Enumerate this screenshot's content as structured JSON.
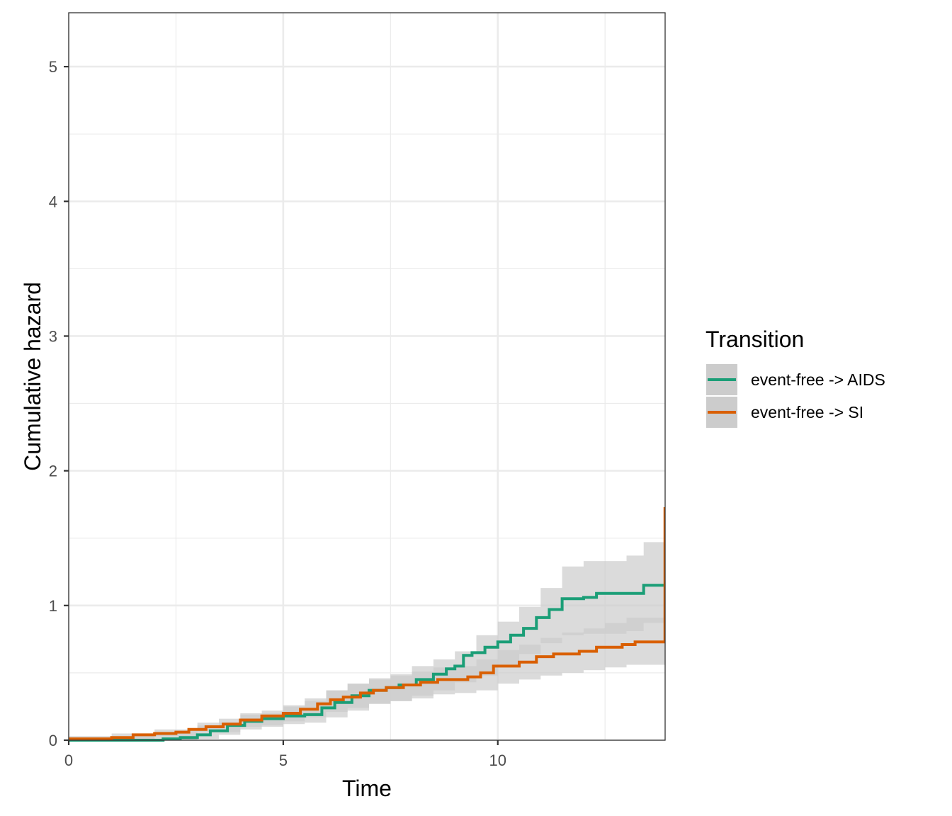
{
  "chart_data": {
    "type": "line",
    "title": "",
    "xlabel": "Time",
    "ylabel": "Cumulative hazard",
    "xlim": [
      0,
      13.9
    ],
    "ylim": [
      0,
      5.4
    ],
    "x_ticks": [
      "0",
      "5",
      "10"
    ],
    "y_ticks": [
      "0",
      "1",
      "2",
      "3",
      "4",
      "5"
    ],
    "grid": true,
    "legend": {
      "title": "Transition",
      "position": "right"
    },
    "series": [
      {
        "name": "event-free -> AIDS",
        "color": "#1b9e77",
        "points": [
          [
            0,
            0
          ],
          [
            1.5,
            0
          ],
          [
            2.2,
            0.01
          ],
          [
            2.6,
            0.02
          ],
          [
            3.0,
            0.04
          ],
          [
            3.3,
            0.07
          ],
          [
            3.7,
            0.11
          ],
          [
            4.1,
            0.14
          ],
          [
            4.5,
            0.16
          ],
          [
            5.0,
            0.18
          ],
          [
            5.5,
            0.19
          ],
          [
            5.9,
            0.24
          ],
          [
            6.2,
            0.28
          ],
          [
            6.6,
            0.33
          ],
          [
            7.0,
            0.37
          ],
          [
            7.4,
            0.39
          ],
          [
            7.7,
            0.41
          ],
          [
            8.1,
            0.45
          ],
          [
            8.5,
            0.49
          ],
          [
            8.8,
            0.53
          ],
          [
            9.0,
            0.55
          ],
          [
            9.2,
            0.63
          ],
          [
            9.4,
            0.65
          ],
          [
            9.7,
            0.69
          ],
          [
            10.0,
            0.73
          ],
          [
            10.3,
            0.78
          ],
          [
            10.6,
            0.83
          ],
          [
            10.9,
            0.91
          ],
          [
            11.2,
            0.97
          ],
          [
            11.5,
            1.05
          ],
          [
            12.0,
            1.06
          ],
          [
            12.3,
            1.09
          ],
          [
            13.3,
            1.09
          ],
          [
            13.4,
            1.15
          ],
          [
            13.9,
            1.15
          ]
        ],
        "ci_upper": [
          [
            0,
            0.02
          ],
          [
            1.5,
            0.04
          ],
          [
            2.5,
            0.07
          ],
          [
            3.0,
            0.11
          ],
          [
            3.5,
            0.16
          ],
          [
            4.0,
            0.19
          ],
          [
            4.5,
            0.22
          ],
          [
            5.0,
            0.25
          ],
          [
            5.5,
            0.29
          ],
          [
            6.0,
            0.37
          ],
          [
            6.5,
            0.42
          ],
          [
            7.0,
            0.46
          ],
          [
            7.5,
            0.49
          ],
          [
            8.0,
            0.55
          ],
          [
            8.5,
            0.6
          ],
          [
            9.0,
            0.66
          ],
          [
            9.5,
            0.78
          ],
          [
            10.0,
            0.88
          ],
          [
            10.5,
            0.99
          ],
          [
            11.0,
            1.13
          ],
          [
            11.5,
            1.29
          ],
          [
            12.0,
            1.33
          ],
          [
            13.0,
            1.37
          ],
          [
            13.3,
            1.37
          ],
          [
            13.4,
            1.47
          ],
          [
            13.9,
            1.47
          ]
        ],
        "ci_lower": [
          [
            0,
            0
          ],
          [
            2.5,
            0
          ],
          [
            3.0,
            0.01
          ],
          [
            3.5,
            0.04
          ],
          [
            4.0,
            0.08
          ],
          [
            4.5,
            0.11
          ],
          [
            5.0,
            0.12
          ],
          [
            5.5,
            0.13
          ],
          [
            6.0,
            0.17
          ],
          [
            6.5,
            0.22
          ],
          [
            7.0,
            0.27
          ],
          [
            7.5,
            0.29
          ],
          [
            8.0,
            0.33
          ],
          [
            8.5,
            0.37
          ],
          [
            9.0,
            0.43
          ],
          [
            9.5,
            0.48
          ],
          [
            10.0,
            0.56
          ],
          [
            10.5,
            0.64
          ],
          [
            11.0,
            0.72
          ],
          [
            11.5,
            0.78
          ],
          [
            12.0,
            0.79
          ],
          [
            13.0,
            0.81
          ],
          [
            13.3,
            0.81
          ],
          [
            13.4,
            0.87
          ],
          [
            13.9,
            0.87
          ]
        ]
      },
      {
        "name": "event-free -> SI",
        "color": "#d95f02",
        "points": [
          [
            0,
            0.01
          ],
          [
            0.8,
            0.01
          ],
          [
            1.0,
            0.02
          ],
          [
            1.5,
            0.04
          ],
          [
            2.0,
            0.05
          ],
          [
            2.5,
            0.06
          ],
          [
            2.8,
            0.08
          ],
          [
            3.2,
            0.1
          ],
          [
            3.6,
            0.12
          ],
          [
            4.0,
            0.15
          ],
          [
            4.5,
            0.18
          ],
          [
            5.0,
            0.2
          ],
          [
            5.4,
            0.23
          ],
          [
            5.8,
            0.27
          ],
          [
            6.1,
            0.3
          ],
          [
            6.4,
            0.32
          ],
          [
            6.8,
            0.35
          ],
          [
            7.1,
            0.37
          ],
          [
            7.4,
            0.39
          ],
          [
            7.8,
            0.41
          ],
          [
            8.2,
            0.43
          ],
          [
            8.6,
            0.45
          ],
          [
            9.0,
            0.45
          ],
          [
            9.3,
            0.47
          ],
          [
            9.6,
            0.5
          ],
          [
            9.9,
            0.55
          ],
          [
            10.5,
            0.58
          ],
          [
            10.9,
            0.62
          ],
          [
            11.3,
            0.64
          ],
          [
            11.9,
            0.66
          ],
          [
            12.3,
            0.69
          ],
          [
            12.9,
            0.71
          ],
          [
            13.2,
            0.73
          ],
          [
            13.9,
            0.73
          ]
        ],
        "ci_upper": [
          [
            0,
            0.03
          ],
          [
            1.0,
            0.05
          ],
          [
            2.0,
            0.08
          ],
          [
            3.0,
            0.13
          ],
          [
            4.0,
            0.2
          ],
          [
            5.0,
            0.26
          ],
          [
            5.5,
            0.31
          ],
          [
            6.0,
            0.37
          ],
          [
            6.5,
            0.42
          ],
          [
            7.0,
            0.45
          ],
          [
            7.5,
            0.48
          ],
          [
            8.0,
            0.51
          ],
          [
            8.5,
            0.54
          ],
          [
            9.0,
            0.55
          ],
          [
            9.5,
            0.6
          ],
          [
            10.0,
            0.67
          ],
          [
            10.5,
            0.71
          ],
          [
            11.0,
            0.76
          ],
          [
            11.5,
            0.8
          ],
          [
            12.0,
            0.83
          ],
          [
            12.5,
            0.87
          ],
          [
            13.0,
            0.91
          ],
          [
            13.9,
            0.93
          ]
        ],
        "ci_lower": [
          [
            0,
            0
          ],
          [
            1.0,
            0.01
          ],
          [
            2.0,
            0.03
          ],
          [
            3.0,
            0.06
          ],
          [
            4.0,
            0.1
          ],
          [
            5.0,
            0.14
          ],
          [
            5.5,
            0.17
          ],
          [
            6.0,
            0.21
          ],
          [
            6.5,
            0.24
          ],
          [
            7.0,
            0.27
          ],
          [
            7.5,
            0.29
          ],
          [
            8.0,
            0.31
          ],
          [
            8.5,
            0.34
          ],
          [
            9.0,
            0.35
          ],
          [
            9.5,
            0.37
          ],
          [
            10.0,
            0.42
          ],
          [
            10.5,
            0.45
          ],
          [
            11.0,
            0.48
          ],
          [
            11.5,
            0.5
          ],
          [
            12.0,
            0.52
          ],
          [
            12.5,
            0.54
          ],
          [
            13.0,
            0.56
          ],
          [
            13.9,
            0.57
          ]
        ],
        "end_spike": 1.73
      }
    ],
    "ci_fill_color": "#cccccc"
  }
}
